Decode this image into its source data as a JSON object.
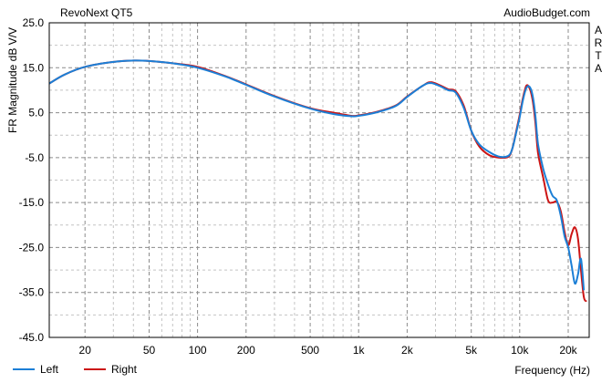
{
  "chart_data": {
    "type": "line",
    "title": "RevoNext QT5",
    "source": "AudioBudget.com",
    "side_label": [
      "A",
      "R",
      "T",
      "A"
    ],
    "xlabel": "Frequency (Hz)",
    "ylabel": "FR Magnitude dB V/V",
    "x_scale": "log",
    "xlim": [
      12,
      27000
    ],
    "ylim": [
      -45,
      25
    ],
    "y_ticks": [
      25.0,
      15.0,
      5.0,
      -5.0,
      -15.0,
      -25.0,
      -35.0,
      -45.0
    ],
    "y_tick_labels": [
      "25.0",
      "15.0",
      "5.0",
      "-5.0",
      "-15.0",
      "-25.0",
      "-35.0",
      "-45.0"
    ],
    "x_ticks": [
      20,
      50,
      100,
      200,
      500,
      1000,
      2000,
      5000,
      10000,
      20000
    ],
    "x_tick_labels": [
      "20",
      "50",
      "100",
      "200",
      "500",
      "1k",
      "2k",
      "5k",
      "10k",
      "20k"
    ],
    "grid": true,
    "legend_placement": "bottom-left",
    "series": [
      {
        "name": "Left",
        "color": "#1c7fd6",
        "x": [
          12,
          15,
          20,
          30,
          40,
          50,
          70,
          100,
          150,
          200,
          300,
          500,
          700,
          900,
          1000,
          1300,
          1700,
          2000,
          2500,
          2800,
          3200,
          3600,
          4000,
          4500,
          5000,
          5600,
          6500,
          7500,
          8500,
          9000,
          9500,
          10000,
          10500,
          11000,
          11500,
          12000,
          12500,
          13000,
          14000,
          15000,
          16000,
          17000,
          18000,
          19000,
          20000,
          21000,
          22000,
          23000,
          24000,
          25000
        ],
        "y": [
          11.5,
          13.5,
          15.2,
          16.3,
          16.6,
          16.5,
          16.0,
          15.0,
          13.0,
          11.2,
          8.6,
          5.9,
          4.7,
          4.2,
          4.3,
          5.1,
          6.5,
          8.5,
          11.0,
          11.6,
          10.9,
          10.0,
          9.5,
          6.0,
          1.0,
          -2.0,
          -3.8,
          -4.8,
          -4.6,
          -3.0,
          0.5,
          4.0,
          8.0,
          10.5,
          10.8,
          9.0,
          4.5,
          -2.0,
          -7.5,
          -11.0,
          -13.5,
          -14.5,
          -18.0,
          -22.5,
          -25.0,
          -29.0,
          -33.0,
          -31.0,
          -27.5,
          -34.5
        ]
      },
      {
        "name": "Right",
        "color": "#cc1414",
        "x": [
          12,
          15,
          20,
          30,
          40,
          50,
          70,
          100,
          150,
          200,
          300,
          500,
          700,
          900,
          1000,
          1300,
          1700,
          2000,
          2500,
          2800,
          3200,
          3600,
          4000,
          4500,
          5000,
          5600,
          6500,
          7500,
          8500,
          9000,
          9500,
          10000,
          10500,
          11000,
          11500,
          12000,
          12500,
          13000,
          14000,
          15000,
          16000,
          17000,
          18000,
          19000,
          20000,
          21000,
          22000,
          23000,
          24000,
          25000,
          26000
        ],
        "y": [
          11.5,
          13.5,
          15.2,
          16.3,
          16.6,
          16.5,
          16.0,
          15.2,
          13.1,
          11.3,
          8.7,
          6.0,
          5.0,
          4.3,
          4.4,
          5.2,
          6.6,
          8.6,
          11.0,
          11.8,
          11.1,
          10.2,
          9.8,
          6.5,
          1.0,
          -2.5,
          -4.5,
          -5.0,
          -4.8,
          -3.0,
          0.8,
          4.5,
          8.5,
          11.0,
          10.5,
          8.0,
          3.0,
          -4.0,
          -9.5,
          -14.5,
          -15.0,
          -14.8,
          -17.0,
          -21.5,
          -24.5,
          -22.0,
          -20.5,
          -23.0,
          -30.0,
          -36.0,
          -37.0
        ]
      }
    ]
  }
}
